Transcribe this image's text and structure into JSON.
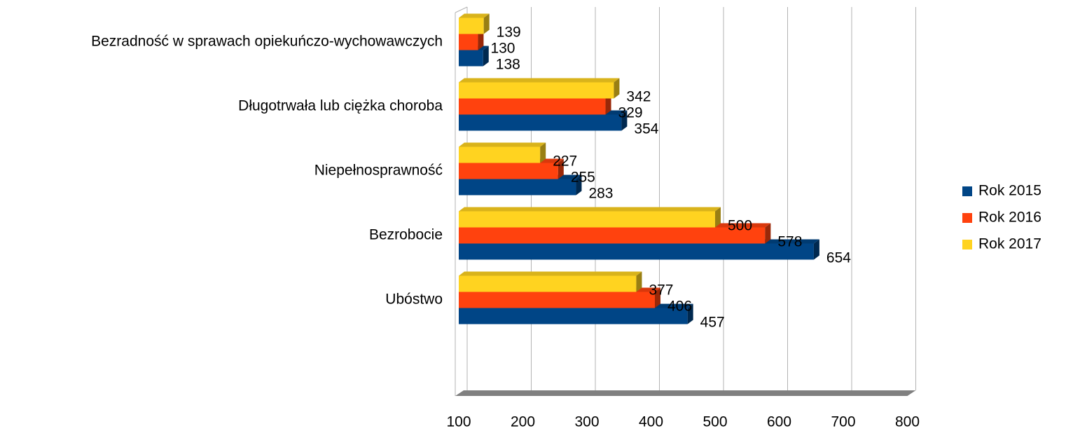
{
  "chart_data": {
    "type": "bar",
    "orientation": "horizontal",
    "categories": [
      "Bezradność w sprawach opiekuńczo-wychowawczych",
      "Długotrwała lub ciężka choroba",
      "Niepełnosprawność",
      "Bezrobocie",
      "Ubóstwo"
    ],
    "series": [
      {
        "name": "Rok 2015",
        "color": "#004586",
        "values": [
          138,
          354,
          283,
          654,
          457
        ]
      },
      {
        "name": "Rok 2016",
        "color": "#ff420e",
        "values": [
          130,
          329,
          255,
          578,
          406
        ]
      },
      {
        "name": "Rok 2017",
        "color": "#ffd320",
        "values": [
          139,
          342,
          227,
          500,
          377
        ]
      }
    ],
    "xlim": [
      100,
      800
    ],
    "xticks": [
      100,
      200,
      300,
      400,
      500,
      600,
      700,
      800
    ],
    "grid": true,
    "legend": "right"
  }
}
